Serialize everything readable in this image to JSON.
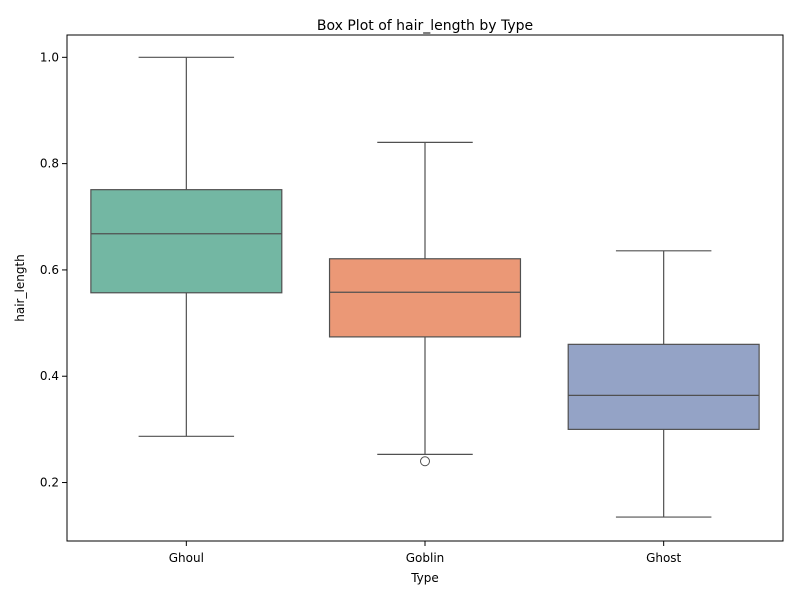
{
  "chart_data": {
    "type": "box",
    "title": "Box Plot of hair_length by Type",
    "xlabel": "Type",
    "ylabel": "hair_length",
    "ylim": [
      0.09,
      1.042
    ],
    "yticks": [
      0.2,
      0.4,
      0.6,
      0.8,
      1.0
    ],
    "ytick_labels": [
      "0.2",
      "0.4",
      "0.6",
      "0.8",
      "1.0"
    ],
    "grid": false,
    "categories": [
      "Ghoul",
      "Goblin",
      "Ghost"
    ],
    "boxes": [
      {
        "category": "Ghoul",
        "whisker_low": 0.287,
        "q1": 0.557,
        "median": 0.668,
        "q3": 0.751,
        "whisker_high": 1.0,
        "outliers": [],
        "color": "#73b7a3"
      },
      {
        "category": "Goblin",
        "whisker_low": 0.253,
        "q1": 0.474,
        "median": 0.558,
        "q3": 0.621,
        "whisker_high": 0.84,
        "outliers": [
          0.24
        ],
        "color": "#eb9876"
      },
      {
        "category": "Ghost",
        "whisker_low": 0.135,
        "q1": 0.3,
        "median": 0.364,
        "q3": 0.46,
        "whisker_high": 0.636,
        "outliers": [],
        "color": "#94a3c6"
      }
    ],
    "line_color": "#505050"
  }
}
